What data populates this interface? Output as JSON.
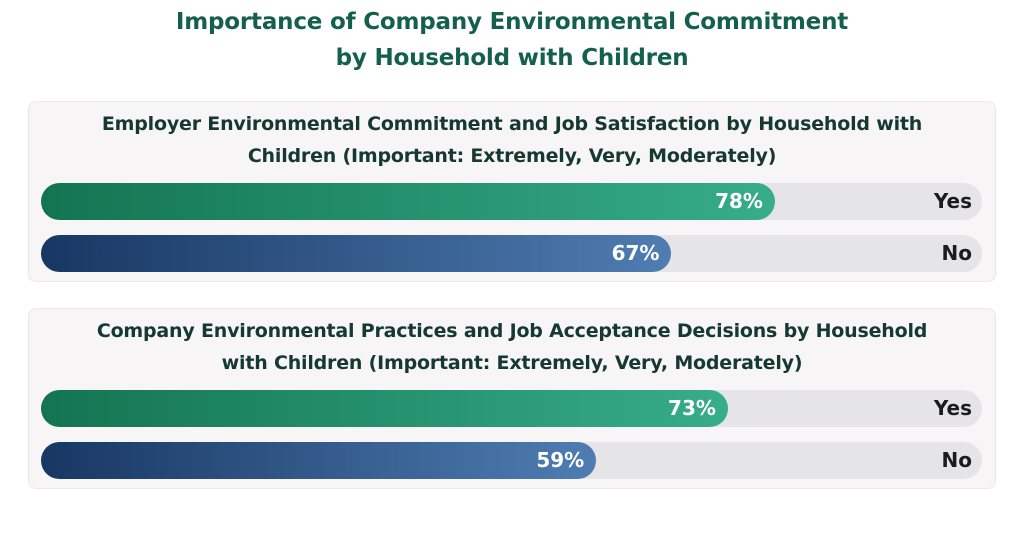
{
  "chart_data": {
    "type": "bar",
    "orientation": "horizontal",
    "title_line1": "Importance of Company Environmental Commitment",
    "title_line2": "by Household with Children",
    "xlim": [
      0,
      100
    ],
    "colors": {
      "Yes": "#1e8a63",
      "No": "#2a4f82"
    },
    "panels": [
      {
        "title_line1": "Employer Environmental Commitment and Job Satisfaction by Household with",
        "title_line2": "Children (Important: Extremely, Very, Moderately)",
        "categories": [
          "Yes",
          "No"
        ],
        "values": [
          78,
          67
        ],
        "value_labels": [
          "78%",
          "67%"
        ]
      },
      {
        "title_line1": "Company Environmental Practices and Job Acceptance Decisions by Household",
        "title_line2": "with Children (Important: Extremely, Very, Moderately)",
        "categories": [
          "Yes",
          "No"
        ],
        "values": [
          73,
          59
        ],
        "value_labels": [
          "73%",
          "59%"
        ]
      }
    ]
  }
}
